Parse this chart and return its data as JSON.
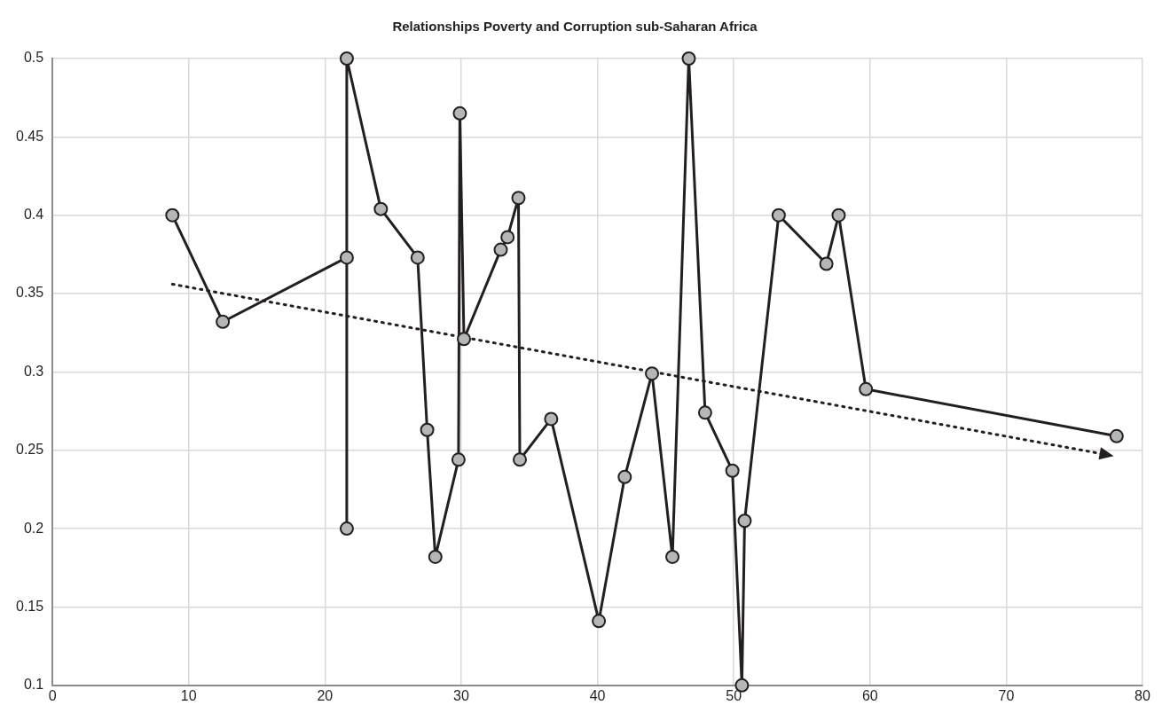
{
  "chart_data": {
    "type": "line",
    "title": "Relationships Poverty and Corruption sub-Saharan Africa",
    "xlim": [
      0,
      80
    ],
    "xticks": [
      0,
      10,
      20,
      30,
      40,
      50,
      60,
      70,
      80
    ],
    "ylim": [
      0.1,
      0.5
    ],
    "yticks": [
      0.1,
      0.15,
      0.2,
      0.25,
      0.3,
      0.35,
      0.4,
      0.45,
      0.5
    ],
    "grid": true,
    "legend": false,
    "line_style": "solid",
    "series": [
      {
        "color": "#231f20",
        "marker": "circle",
        "x": [
          8.8,
          12.5,
          21.6,
          21.6,
          21.6,
          24.1,
          26.8,
          27.5,
          28.1,
          29.8,
          29.9,
          30.2,
          32.9,
          33.4,
          34.2,
          34.3,
          36.6,
          40.1,
          42.0,
          44.0,
          45.5,
          46.7,
          47.9,
          49.9,
          50.6,
          50.8,
          53.3,
          56.8,
          57.7,
          59.7,
          78.1
        ],
        "values": [
          0.4,
          0.332,
          0.373,
          0.2,
          0.5,
          0.404,
          0.373,
          0.263,
          0.182,
          0.244,
          0.465,
          0.321,
          0.378,
          0.386,
          0.411,
          0.244,
          0.27,
          0.141,
          0.233,
          0.299,
          0.182,
          0.5,
          0.274,
          0.237,
          0.1,
          0.205,
          0.4,
          0.369,
          0.4,
          0.289,
          0.259
        ]
      },
      {
        "color": "#231f20",
        "type": "line",
        "line_style": "dotted",
        "x": [
          8.8,
          77.5
        ],
        "values": [
          0.356,
          0.247
        ]
      }
    ]
  }
}
